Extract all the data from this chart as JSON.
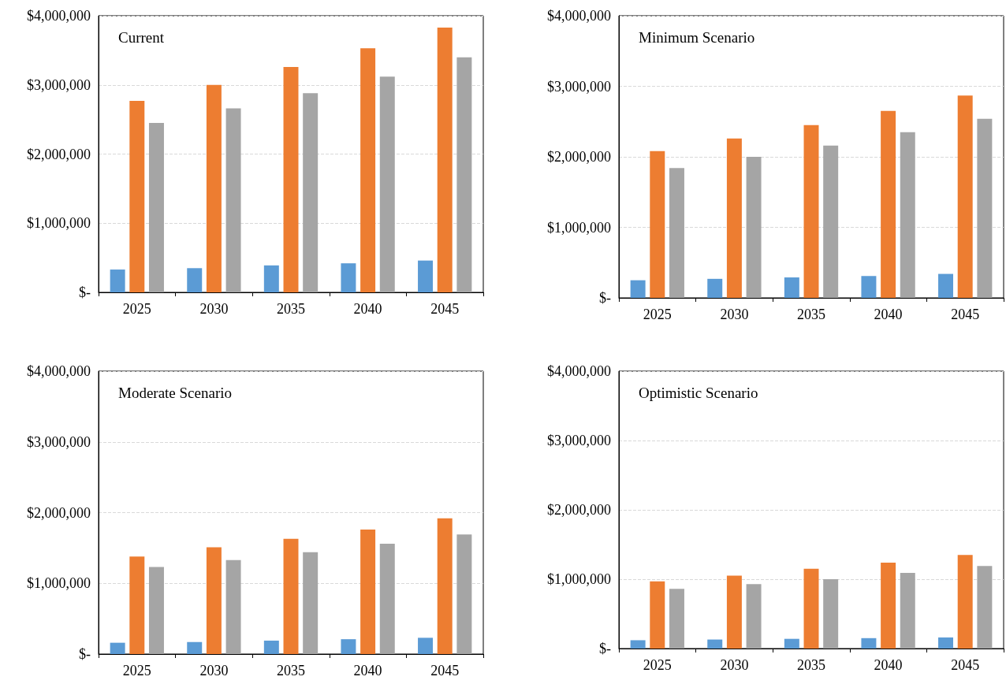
{
  "chart_data": [
    {
      "type": "bar",
      "title": "Current",
      "categories": [
        "2025",
        "2030",
        "2035",
        "2040",
        "2045"
      ],
      "series": [
        {
          "color": "#5b9bd5",
          "values": [
            330000,
            350000,
            390000,
            420000,
            460000
          ]
        },
        {
          "color": "#ed7d31",
          "values": [
            2770000,
            3000000,
            3260000,
            3530000,
            3830000
          ]
        },
        {
          "color": "#a5a5a5",
          "values": [
            2450000,
            2660000,
            2880000,
            3120000,
            3400000
          ]
        }
      ],
      "ylim": [
        0,
        4000000
      ],
      "yticks": [
        {
          "value": 0,
          "label": "$-"
        },
        {
          "value": 1000000,
          "label": "$1,000,000"
        },
        {
          "value": 2000000,
          "label": "$2,000,000"
        },
        {
          "value": 3000000,
          "label": "$3,000,000"
        },
        {
          "value": 4000000,
          "label": "$4,000,000"
        }
      ],
      "grid": "y"
    },
    {
      "type": "bar",
      "title": "Minimum Scenario",
      "categories": [
        "2025",
        "2030",
        "2035",
        "2040",
        "2045"
      ],
      "series": [
        {
          "color": "#5b9bd5",
          "values": [
            250000,
            270000,
            290000,
            310000,
            340000
          ]
        },
        {
          "color": "#ed7d31",
          "values": [
            2080000,
            2260000,
            2450000,
            2650000,
            2870000
          ]
        },
        {
          "color": "#a5a5a5",
          "values": [
            1840000,
            2000000,
            2160000,
            2350000,
            2540000
          ]
        }
      ],
      "ylim": [
        0,
        4000000
      ],
      "yticks": [
        {
          "value": 0,
          "label": "$-"
        },
        {
          "value": 1000000,
          "label": "$1,000,000"
        },
        {
          "value": 2000000,
          "label": "$2,000,000"
        },
        {
          "value": 3000000,
          "label": "$3,000,000"
        },
        {
          "value": 4000000,
          "label": "$4,000,000"
        }
      ],
      "grid": "y"
    },
    {
      "type": "bar",
      "title": "Moderate Scenario",
      "categories": [
        "2025",
        "2030",
        "2035",
        "2040",
        "2045"
      ],
      "series": [
        {
          "color": "#5b9bd5",
          "values": [
            160000,
            170000,
            190000,
            210000,
            230000
          ]
        },
        {
          "color": "#ed7d31",
          "values": [
            1380000,
            1510000,
            1630000,
            1760000,
            1920000
          ]
        },
        {
          "color": "#a5a5a5",
          "values": [
            1230000,
            1330000,
            1440000,
            1560000,
            1690000
          ]
        }
      ],
      "ylim": [
        0,
        4000000
      ],
      "yticks": [
        {
          "value": 0,
          "label": "$-"
        },
        {
          "value": 1000000,
          "label": "$1,000,000"
        },
        {
          "value": 2000000,
          "label": "$2,000,000"
        },
        {
          "value": 3000000,
          "label": "$3,000,000"
        },
        {
          "value": 4000000,
          "label": "$4,000,000"
        }
      ],
      "grid": "y"
    },
    {
      "type": "bar",
      "title": "Optimistic Scenario",
      "categories": [
        "2025",
        "2030",
        "2035",
        "2040",
        "2045"
      ],
      "series": [
        {
          "color": "#5b9bd5",
          "values": [
            120000,
            130000,
            140000,
            150000,
            160000
          ]
        },
        {
          "color": "#ed7d31",
          "values": [
            970000,
            1050000,
            1150000,
            1240000,
            1350000
          ]
        },
        {
          "color": "#a5a5a5",
          "values": [
            860000,
            930000,
            1000000,
            1090000,
            1190000
          ]
        }
      ],
      "ylim": [
        0,
        4000000
      ],
      "yticks": [
        {
          "value": 0,
          "label": "$-"
        },
        {
          "value": 1000000,
          "label": "$1,000,000"
        },
        {
          "value": 2000000,
          "label": "$2,000,000"
        },
        {
          "value": 3000000,
          "label": "$3,000,000"
        },
        {
          "value": 4000000,
          "label": "$4,000,000"
        }
      ],
      "grid": "y"
    }
  ]
}
